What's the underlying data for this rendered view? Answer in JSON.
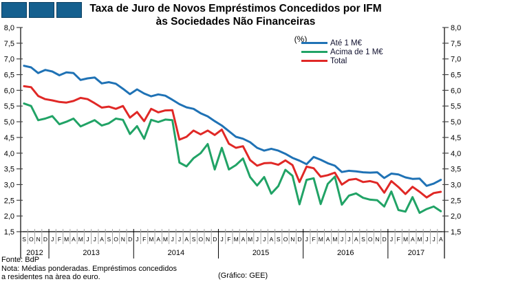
{
  "logo": {
    "square_count": 3,
    "color": "#15608F"
  },
  "title": {
    "line1": "Taxa de Juro de Novos Empréstimos Concedidos por IFM",
    "line2": "às Sociedades Não Financeiras",
    "subtitle": "(%)"
  },
  "footer": {
    "fonte": "Fonte: BdP",
    "nota_line1": "Nota: Médias ponderadas. Empréstimos concedidos",
    "nota_line2": "a residentes na àrea do euro.",
    "credit": "(Gráfico: GEE)"
  },
  "chart_data": {
    "type": "line",
    "title": "Taxa de Juro de Novos Empréstimos Concedidos por IFM às Sociedades Não Financeiras (%)",
    "ylim": [
      1.5,
      8.0
    ],
    "ytick_step": 0.5,
    "ytick_values": [
      8.0,
      7.5,
      7.0,
      6.5,
      6.0,
      5.5,
      5.0,
      4.5,
      4.0,
      3.5,
      3.0,
      2.5,
      2.0,
      1.5
    ],
    "ytick_labels": [
      "8,0",
      "7,5",
      "7,0",
      "6,5",
      "6,0",
      "5,5",
      "5,0",
      "4,5",
      "4,0",
      "3,5",
      "3,0",
      "2,5",
      "2,0",
      "1,5"
    ],
    "dual_axis": true,
    "grid": false,
    "legend_position": "top-right-inside",
    "x_start": "Sep 2012",
    "x_end": "Aug 2017",
    "month_labels": [
      "S",
      "O",
      "N",
      "D",
      "J",
      "F",
      "M",
      "A",
      "M",
      "J",
      "J",
      "A",
      "S",
      "O",
      "N",
      "D",
      "J",
      "F",
      "M",
      "A",
      "M",
      "J",
      "J",
      "A",
      "S",
      "O",
      "N",
      "D",
      "J",
      "F",
      "M",
      "A",
      "M",
      "J",
      "J",
      "A",
      "S",
      "O",
      "N",
      "D",
      "J",
      "F",
      "M",
      "A",
      "M",
      "J",
      "J",
      "A",
      "S",
      "O",
      "N",
      "D",
      "J",
      "F",
      "M",
      "A",
      "M",
      "J",
      "J",
      "A"
    ],
    "year_groups": [
      {
        "label": "2012",
        "months": 4
      },
      {
        "label": "2013",
        "months": 12
      },
      {
        "label": "2014",
        "months": 12
      },
      {
        "label": "2015",
        "months": 12
      },
      {
        "label": "2016",
        "months": 12
      },
      {
        "label": "2017",
        "months": 8
      }
    ],
    "series": [
      {
        "name": "Até 1 M€",
        "color": "#1F72B5",
        "values": [
          6.78,
          6.73,
          6.55,
          6.65,
          6.6,
          6.48,
          6.57,
          6.55,
          6.33,
          6.38,
          6.41,
          6.22,
          6.26,
          6.21,
          6.05,
          5.88,
          6.03,
          5.9,
          5.81,
          5.87,
          5.83,
          5.7,
          5.56,
          5.46,
          5.41,
          5.27,
          5.17,
          5.02,
          4.88,
          4.7,
          4.52,
          4.46,
          4.35,
          4.17,
          4.08,
          4.14,
          4.08,
          3.98,
          3.85,
          3.76,
          3.65,
          3.88,
          3.79,
          3.68,
          3.6,
          3.4,
          3.44,
          3.42,
          3.39,
          3.38,
          3.39,
          3.21,
          3.35,
          3.32,
          3.23,
          3.18,
          3.19,
          2.96,
          3.03,
          3.15
        ]
      },
      {
        "name": "Acima de 1 M€",
        "color": "#21A366",
        "values": [
          5.58,
          5.5,
          5.05,
          5.1,
          5.18,
          4.92,
          5.0,
          5.1,
          4.85,
          4.95,
          5.05,
          4.88,
          4.95,
          5.1,
          5.06,
          4.61,
          4.86,
          4.46,
          5.06,
          4.99,
          5.07,
          5.05,
          3.7,
          3.58,
          3.84,
          4.0,
          4.29,
          3.48,
          4.17,
          3.48,
          3.62,
          3.83,
          3.24,
          2.97,
          3.24,
          2.71,
          2.95,
          3.47,
          3.28,
          2.37,
          3.15,
          3.2,
          2.38,
          3.02,
          3.25,
          2.36,
          2.65,
          2.72,
          2.58,
          2.52,
          2.5,
          2.3,
          2.78,
          2.19,
          2.14,
          2.6,
          2.1,
          2.22,
          2.3,
          2.15
        ]
      },
      {
        "name": "Total",
        "color": "#E02826",
        "values": [
          6.13,
          6.1,
          5.82,
          5.72,
          5.68,
          5.63,
          5.61,
          5.66,
          5.76,
          5.72,
          5.59,
          5.45,
          5.48,
          5.41,
          5.5,
          5.13,
          5.31,
          5.02,
          5.41,
          5.3,
          5.36,
          5.37,
          4.43,
          4.52,
          4.72,
          4.6,
          4.72,
          4.58,
          4.75,
          4.3,
          4.17,
          4.22,
          3.78,
          3.6,
          3.68,
          3.69,
          3.63,
          3.77,
          3.62,
          3.08,
          3.57,
          3.52,
          3.25,
          3.3,
          3.38,
          3.0,
          3.15,
          3.18,
          3.08,
          3.11,
          3.05,
          2.74,
          3.11,
          2.92,
          2.7,
          2.93,
          2.77,
          2.59,
          2.73,
          2.77
        ]
      }
    ]
  }
}
